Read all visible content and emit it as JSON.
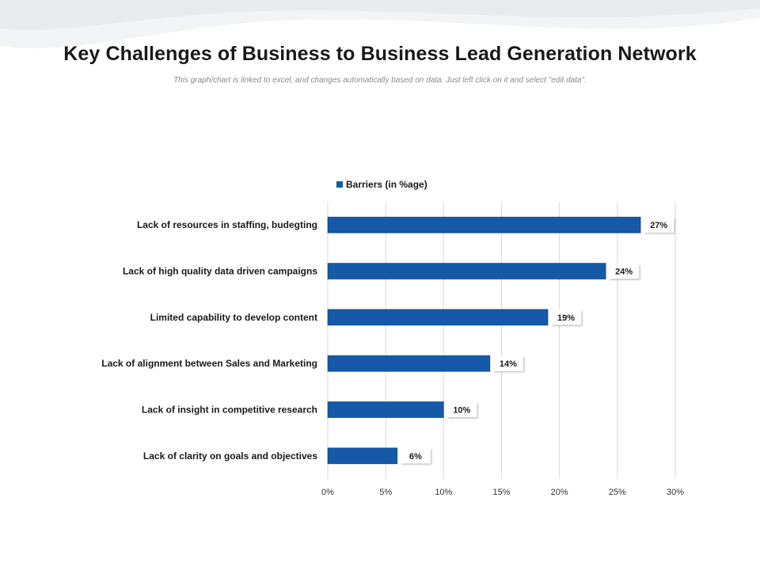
{
  "page": {
    "title": "Key Challenges of Business to Business Lead Generation Network",
    "subtitle": "This graph/chart is linked to excel, and changes automatically based on data. Just left click on it and select \"edit data\"."
  },
  "chart_data": {
    "type": "bar",
    "orientation": "horizontal",
    "categories": [
      "Lack of resources in staffing, budegting",
      "Lack of high quality data driven campaigns",
      "Limited capability to develop content",
      "Lack of alignment between Sales and Marketing",
      "Lack of insight in competitive research",
      "Lack of clarity on goals and objectives"
    ],
    "series": [
      {
        "name": "Barriers (in %age)",
        "values": [
          27,
          24,
          19,
          14,
          10,
          6
        ],
        "color": "#1559a8"
      }
    ],
    "data_labels": [
      "27%",
      "24%",
      "19%",
      "14%",
      "10%",
      "6%"
    ],
    "xlim": [
      0,
      30
    ],
    "x_ticks": [
      0,
      5,
      10,
      15,
      20,
      25,
      30
    ],
    "x_tick_labels": [
      "0%",
      "5%",
      "10%",
      "15%",
      "20%",
      "25%",
      "30%"
    ],
    "grid": true,
    "legend_position": "top"
  }
}
